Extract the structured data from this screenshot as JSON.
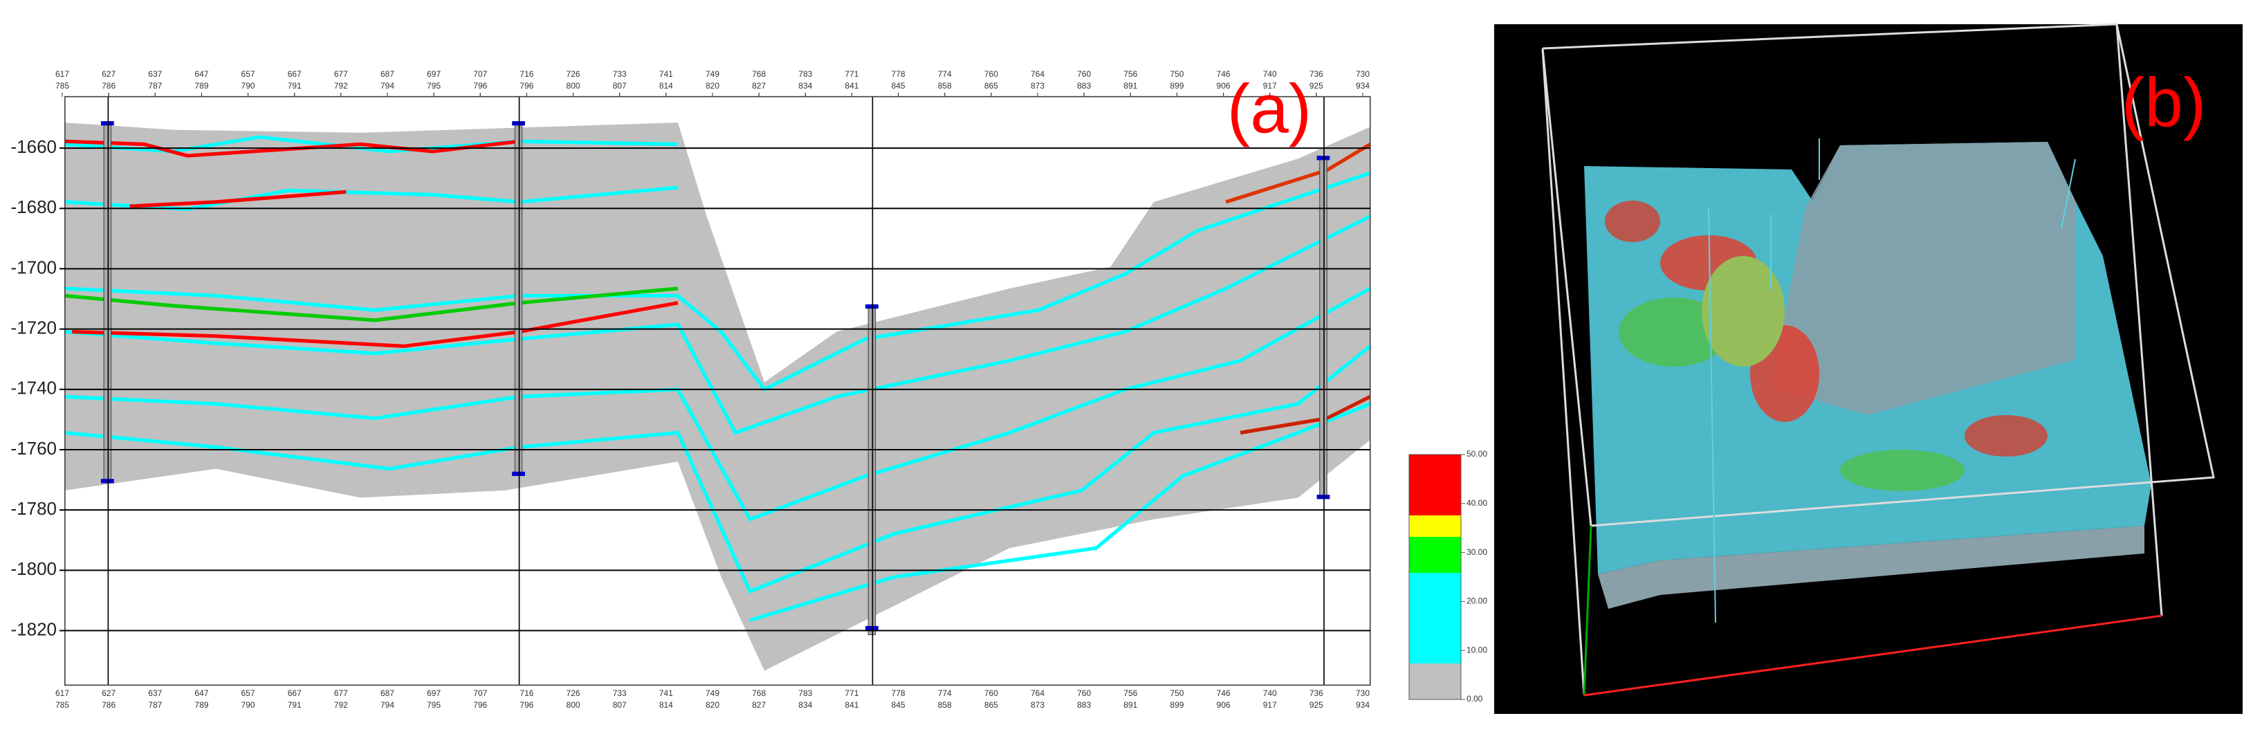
{
  "panel_a": {
    "label": "(a)",
    "depth_axis": {
      "lim": [
        -1643,
        -1838
      ],
      "ticks": [
        -1660,
        -1680,
        -1700,
        -1720,
        -1740,
        -1760,
        -1780,
        -1800,
        -1820
      ]
    },
    "trace_row_1": [
      "617",
      "627",
      "637",
      "647",
      "657",
      "667",
      "677",
      "687",
      "697",
      "707",
      "716",
      "726",
      "733",
      "741",
      "749",
      "768",
      "783",
      "771",
      "778",
      "774",
      "760",
      "764",
      "760",
      "756",
      "750",
      "746",
      "740",
      "736",
      "730"
    ],
    "trace_row_2": [
      "785",
      "786",
      "787",
      "789",
      "790",
      "791",
      "792",
      "794",
      "795",
      "796",
      "796",
      "800",
      "807",
      "814",
      "820",
      "827",
      "834",
      "841",
      "845",
      "858",
      "865",
      "873",
      "883",
      "891",
      "899",
      "906",
      "917",
      "925",
      "934"
    ]
  },
  "colorbar": {
    "lim": [
      0,
      50
    ],
    "ticks": [
      {
        "value": 50,
        "label": "50.00"
      },
      {
        "value": 40,
        "label": "40.00"
      },
      {
        "value": 30,
        "label": "30.00"
      },
      {
        "value": 20,
        "label": "20.00"
      },
      {
        "value": 10,
        "label": "10.00"
      },
      {
        "value": 0,
        "label": "0.00"
      }
    ]
  },
  "panel_b": {
    "label": "(b)"
  }
}
